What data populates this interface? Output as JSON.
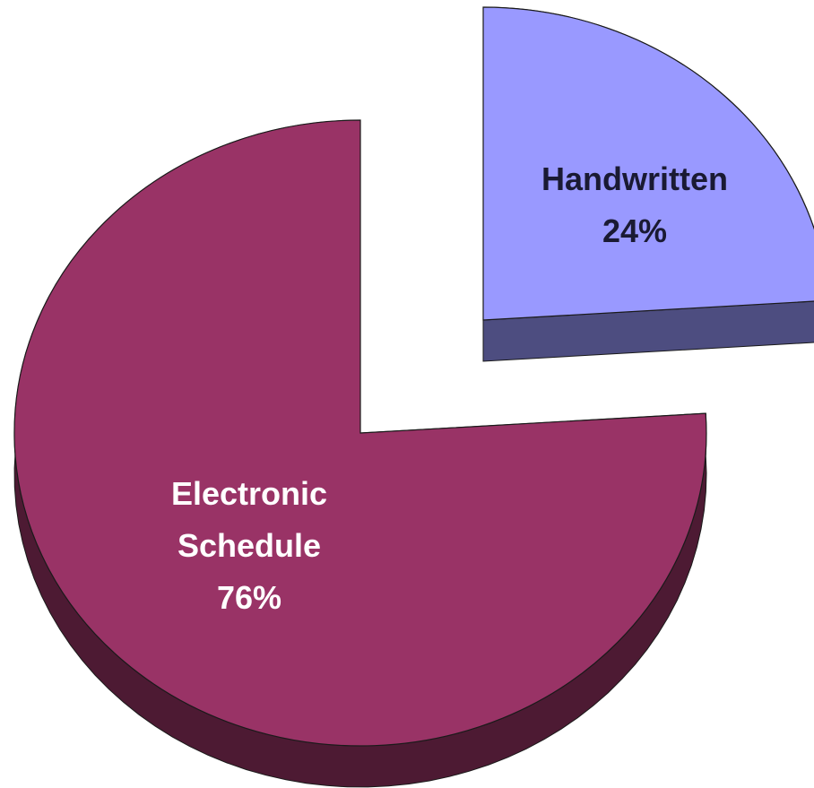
{
  "chart_data": {
    "type": "pie",
    "style": "3d-exploded",
    "title": "",
    "slices": [
      {
        "label_lines": [
          "Handwritten"
        ],
        "percent_label": "24%",
        "value": 24,
        "color": "#9999ff",
        "side_color": "#4d4d80",
        "label_color": "#1a1a33",
        "exploded": true
      },
      {
        "label_lines": [
          "Electronic",
          "Schedule"
        ],
        "percent_label": "76%",
        "value": 76,
        "color": "#993366",
        "side_color": "#4d1a33",
        "label_color": "#ffffff",
        "exploded": false
      }
    ]
  }
}
